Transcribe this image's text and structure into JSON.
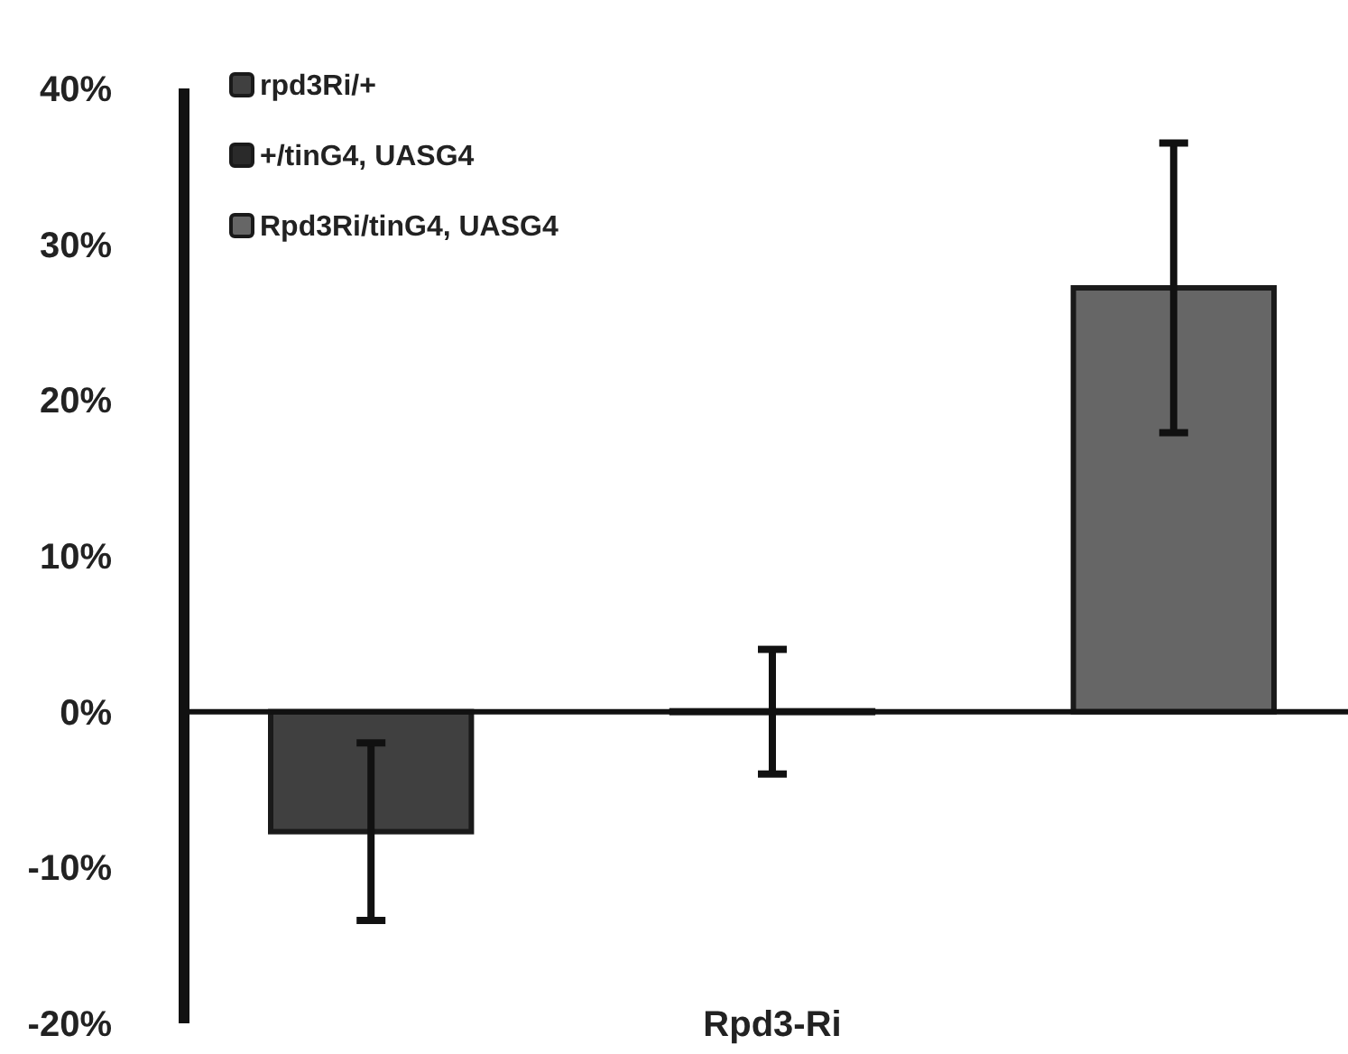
{
  "chart_data": {
    "type": "bar",
    "categories": [
      "Rpd3-Ri"
    ],
    "series": [
      {
        "name": "rpd3Ri/+",
        "color": "#404040",
        "values": [
          -7.7
        ],
        "errors": [
          5.7
        ]
      },
      {
        "name": "+/tinG4, UASG4",
        "color": "#2a2a2a",
        "values": [
          0
        ],
        "errors": [
          4
        ]
      },
      {
        "name": "Rpd3Ri/tinG4, UASG4",
        "color": "#666666",
        "values": [
          27.2
        ],
        "errors": [
          9.3
        ]
      }
    ],
    "ylim": [
      -20,
      40
    ],
    "yticks": [
      {
        "value": -20,
        "label": "-20%"
      },
      {
        "value": -10,
        "label": "-10%"
      },
      {
        "value": 0,
        "label": "0%"
      },
      {
        "value": 10,
        "label": "10%"
      },
      {
        "value": 20,
        "label": "20%"
      },
      {
        "value": 30,
        "label": "30%"
      },
      {
        "value": 40,
        "label": "40%"
      }
    ],
    "ref_lines": [
      {
        "axis": "y",
        "value": 0
      }
    ],
    "legend": "top left"
  }
}
